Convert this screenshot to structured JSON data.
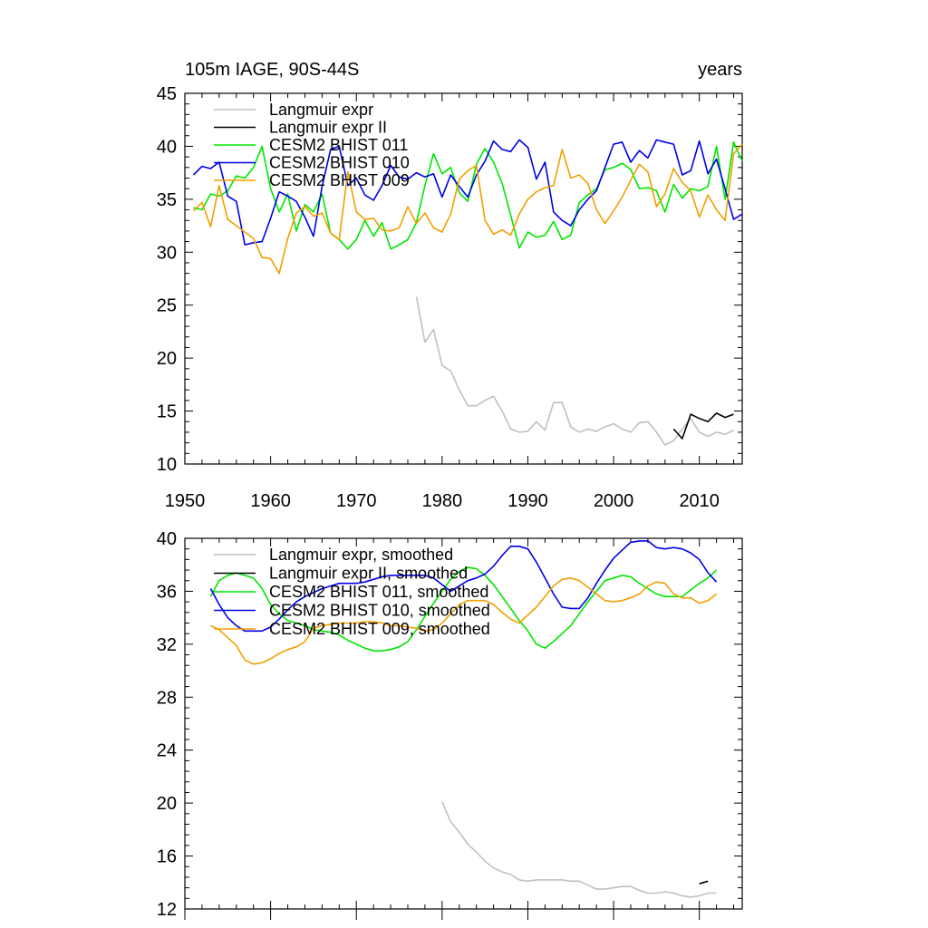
{
  "chart_data": [
    {
      "type": "line",
      "title": "105m IAGE, 90S-44S",
      "units": "years",
      "xlim": [
        1950,
        2015
      ],
      "ylim": [
        10,
        45
      ],
      "x_ticks": [
        1950,
        1960,
        1970,
        1980,
        1990,
        2000,
        2010
      ],
      "y_ticks": [
        10,
        15,
        20,
        25,
        30,
        35,
        40,
        45
      ],
      "legend_position": "top-left",
      "series": [
        {
          "name": "Langmuir expr",
          "color": "#c0c0c0",
          "x": [
            1977,
            1978,
            1979,
            1980,
            1981,
            1982,
            1983,
            1984,
            1985,
            1986,
            1987,
            1988,
            1989,
            1990,
            1991,
            1992,
            1993,
            1994,
            1995,
            1996,
            1997,
            1998,
            1999,
            2000,
            2001,
            2002,
            2003,
            2004,
            2005,
            2006,
            2007,
            2008,
            2009,
            2010,
            2011,
            2012,
            2013,
            2014
          ],
          "y": [
            25.8,
            21.5,
            22.7,
            19.3,
            18.8,
            17.0,
            15.5,
            15.5,
            16.0,
            16.4,
            15.0,
            13.3,
            13.0,
            13.1,
            14.0,
            13.2,
            15.8,
            15.8,
            13.5,
            13.0,
            13.3,
            13.1,
            13.5,
            13.8,
            13.3,
            13.0,
            13.9,
            14.0,
            13.0,
            11.8,
            12.2,
            13.3,
            14.3,
            13.0,
            12.6,
            13.0,
            12.8,
            13.2
          ]
        },
        {
          "name": "Langmuir expr II",
          "color": "#000000",
          "x": [
            2007,
            2008,
            2009,
            2010,
            2011,
            2012,
            2013,
            2014
          ],
          "y": [
            13.3,
            12.4,
            14.7,
            14.3,
            14.0,
            14.8,
            14.4,
            14.7
          ]
        },
        {
          "name": "CESM2 BHIST 011",
          "color": "#00e600",
          "x": [
            1951,
            1952,
            1953,
            1954,
            1955,
            1956,
            1957,
            1958,
            1959,
            1960,
            1961,
            1962,
            1963,
            1964,
            1965,
            1966,
            1967,
            1968,
            1969,
            1970,
            1971,
            1972,
            1973,
            1974,
            1975,
            1976,
            1977,
            1978,
            1979,
            1980,
            1981,
            1982,
            1983,
            1984,
            1985,
            1986,
            1987,
            1988,
            1989,
            1990,
            1991,
            1992,
            1993,
            1994,
            1995,
            1996,
            1997,
            1998,
            1999,
            2000,
            2001,
            2002,
            2003,
            2004,
            2005,
            2006,
            2007,
            2008,
            2009,
            2010,
            2011,
            2012,
            2013,
            2014,
            2015
          ],
          "y": [
            34.2,
            34.0,
            35.5,
            35.3,
            35.8,
            37.2,
            37.0,
            38.0,
            40.0,
            36.0,
            33.8,
            35.5,
            32.0,
            34.5,
            33.8,
            35.5,
            31.8,
            31.2,
            30.3,
            31.2,
            33.0,
            31.5,
            32.8,
            30.3,
            30.7,
            31.2,
            32.8,
            36.3,
            39.3,
            37.4,
            38.0,
            35.6,
            34.8,
            38.3,
            39.8,
            38.5,
            36.5,
            33.5,
            30.4,
            31.9,
            31.4,
            31.6,
            32.9,
            31.2,
            31.6,
            34.7,
            35.4,
            36.0,
            37.8,
            38.0,
            38.4,
            37.8,
            36.0,
            36.1,
            35.8,
            33.8,
            36.4,
            35.1,
            36.0,
            35.8,
            36.2,
            40.0,
            35.0,
            40.4,
            38.6
          ]
        },
        {
          "name": "CESM2 BHIST 010",
          "color": "#0000e6",
          "x": [
            1951,
            1952,
            1953,
            1954,
            1955,
            1956,
            1957,
            1958,
            1959,
            1960,
            1961,
            1962,
            1963,
            1964,
            1965,
            1966,
            1967,
            1968,
            1969,
            1970,
            1971,
            1972,
            1973,
            1974,
            1975,
            1976,
            1977,
            1978,
            1979,
            1980,
            1981,
            1982,
            1983,
            1984,
            1985,
            1986,
            1987,
            1988,
            1989,
            1990,
            1991,
            1992,
            1993,
            1994,
            1995,
            1996,
            1997,
            1998,
            1999,
            2000,
            2001,
            2002,
            2003,
            2004,
            2005,
            2006,
            2007,
            2008,
            2009,
            2010,
            2011,
            2012,
            2013,
            2014,
            2015
          ],
          "y": [
            37.3,
            38.1,
            37.9,
            38.5,
            35.3,
            34.8,
            30.7,
            30.9,
            31.0,
            33.2,
            35.7,
            35.3,
            34.8,
            33.3,
            31.5,
            36.2,
            39.7,
            40.0,
            36.3,
            37.0,
            35.4,
            34.9,
            36.3,
            38.2,
            37.1,
            36.9,
            37.5,
            37.1,
            37.4,
            35.2,
            37.3,
            36.2,
            35.2,
            37.3,
            38.6,
            40.5,
            39.7,
            39.5,
            40.6,
            39.9,
            36.9,
            38.5,
            33.8,
            33.0,
            32.5,
            34.0,
            35.0,
            35.8,
            38.0,
            40.2,
            40.4,
            38.5,
            39.6,
            38.9,
            40.6,
            40.4,
            40.2,
            37.3,
            37.7,
            40.5,
            37.4,
            38.8,
            36.0,
            33.1,
            33.6
          ]
        },
        {
          "name": "CESM2 BHIST 009",
          "color": "#f0a000",
          "x": [
            1951,
            1952,
            1953,
            1954,
            1955,
            1956,
            1957,
            1958,
            1959,
            1960,
            1961,
            1962,
            1963,
            1964,
            1965,
            1966,
            1967,
            1968,
            1969,
            1970,
            1971,
            1972,
            1973,
            1974,
            1975,
            1976,
            1977,
            1978,
            1979,
            1980,
            1981,
            1982,
            1983,
            1984,
            1985,
            1986,
            1987,
            1988,
            1989,
            1990,
            1991,
            1992,
            1993,
            1994,
            1995,
            1996,
            1997,
            1998,
            1999,
            2000,
            2001,
            2002,
            2003,
            2004,
            2005,
            2006,
            2007,
            2008,
            2009,
            2010,
            2011,
            2012,
            2013,
            2014,
            2015
          ],
          "y": [
            33.9,
            34.7,
            32.4,
            36.3,
            33.1,
            32.5,
            31.9,
            31.3,
            29.5,
            29.4,
            28.0,
            31.3,
            33.7,
            34.3,
            33.4,
            33.7,
            31.8,
            31.2,
            37.6,
            33.8,
            33.1,
            33.2,
            32.1,
            32.0,
            32.3,
            34.3,
            32.7,
            33.7,
            32.3,
            31.9,
            33.6,
            36.9,
            37.7,
            38.2,
            33.0,
            31.7,
            32.1,
            31.6,
            33.6,
            35.0,
            35.7,
            36.1,
            36.3,
            39.7,
            37.0,
            37.3,
            36.5,
            34.0,
            32.7,
            33.9,
            35.2,
            36.8,
            38.3,
            37.6,
            34.3,
            35.5,
            37.9,
            36.6,
            35.8,
            33.3,
            35.4,
            34.0,
            33.0,
            39.3,
            40.2
          ]
        }
      ]
    },
    {
      "type": "line",
      "xlim": [
        1950,
        2015
      ],
      "ylim": [
        12,
        40
      ],
      "y_ticks": [
        12,
        16,
        20,
        24,
        28,
        32,
        36,
        40
      ],
      "legend_position": "top-left",
      "series": [
        {
          "name": "Langmuir expr, smoothed",
          "color": "#c0c0c0",
          "x": [
            1980,
            1981,
            1982,
            1983,
            1984,
            1985,
            1986,
            1987,
            1988,
            1989,
            1990,
            1991,
            1992,
            1993,
            1994,
            1995,
            1996,
            1997,
            1998,
            1999,
            2000,
            2001,
            2002,
            2003,
            2004,
            2005,
            2006,
            2007,
            2008,
            2009,
            2010,
            2011,
            2012
          ],
          "y": [
            20.1,
            18.6,
            17.8,
            16.9,
            16.3,
            15.6,
            15.1,
            14.8,
            14.6,
            14.2,
            14.1,
            14.2,
            14.2,
            14.2,
            14.2,
            14.1,
            14.1,
            13.8,
            13.5,
            13.5,
            13.6,
            13.7,
            13.7,
            13.4,
            13.2,
            13.2,
            13.3,
            13.2,
            13.0,
            12.9,
            13.0,
            13.2,
            13.2
          ]
        },
        {
          "name": "Langmuir expr II, smoothed",
          "color": "#000000",
          "x": [
            2010,
            2011
          ],
          "y": [
            13.9,
            14.1
          ]
        },
        {
          "name": "CESM2 BHIST 011, smoothed",
          "color": "#00e600",
          "x": [
            1953,
            1954,
            1955,
            1956,
            1957,
            1958,
            1959,
            1960,
            1961,
            1962,
            1963,
            1964,
            1965,
            1966,
            1967,
            1968,
            1969,
            1970,
            1971,
            1972,
            1973,
            1974,
            1975,
            1976,
            1977,
            1978,
            1979,
            1980,
            1981,
            1982,
            1983,
            1984,
            1985,
            1986,
            1987,
            1988,
            1989,
            1990,
            1991,
            1992,
            1993,
            1994,
            1995,
            1996,
            1997,
            1998,
            1999,
            2000,
            2001,
            2002,
            2003,
            2004,
            2005,
            2006,
            2007,
            2008,
            2009,
            2010,
            2011,
            2012
          ],
          "y": [
            35.6,
            36.8,
            37.2,
            37.4,
            37.2,
            37.0,
            36.2,
            35.0,
            34.3,
            33.8,
            33.6,
            33.4,
            33.1,
            33.0,
            32.9,
            32.7,
            32.3,
            32.0,
            31.7,
            31.5,
            31.5,
            31.6,
            31.8,
            32.2,
            33.1,
            34.1,
            35.1,
            36.0,
            36.9,
            37.5,
            37.8,
            37.7,
            37.2,
            36.5,
            35.6,
            34.7,
            33.8,
            33.0,
            32.0,
            31.7,
            32.2,
            32.8,
            33.4,
            34.3,
            35.2,
            36.0,
            36.8,
            37.0,
            37.2,
            37.1,
            36.6,
            36.2,
            35.8,
            35.6,
            35.6,
            35.6,
            36.1,
            36.6,
            37.0,
            37.6
          ]
        },
        {
          "name": "CESM2 BHIST 010, smoothed",
          "color": "#0000e6",
          "x": [
            1953,
            1954,
            1955,
            1956,
            1957,
            1958,
            1959,
            1960,
            1961,
            1962,
            1963,
            1964,
            1965,
            1966,
            1967,
            1968,
            1969,
            1970,
            1971,
            1972,
            1973,
            1974,
            1975,
            1976,
            1977,
            1978,
            1979,
            1980,
            1981,
            1982,
            1983,
            1984,
            1985,
            1986,
            1987,
            1988,
            1989,
            1990,
            1991,
            1992,
            1993,
            1994,
            1995,
            1996,
            1997,
            1998,
            1999,
            2000,
            2001,
            2002,
            2003,
            2004,
            2005,
            2006,
            2007,
            2008,
            2009,
            2010,
            2011,
            2012
          ],
          "y": [
            36.2,
            35.0,
            34.0,
            33.4,
            33.0,
            33.0,
            33.0,
            33.3,
            33.9,
            34.6,
            35.2,
            35.6,
            35.9,
            36.2,
            36.4,
            36.6,
            36.6,
            36.6,
            36.7,
            36.9,
            37.1,
            37.2,
            37.2,
            37.2,
            37.2,
            37.2,
            37.0,
            36.5,
            36.0,
            36.4,
            36.8,
            37.0,
            37.3,
            37.9,
            38.7,
            39.4,
            39.4,
            39.2,
            38.2,
            37.0,
            35.8,
            34.8,
            34.7,
            34.7,
            35.5,
            36.6,
            37.6,
            38.5,
            39.1,
            39.7,
            39.8,
            39.8,
            39.3,
            39.2,
            39.3,
            39.2,
            38.9,
            38.4,
            37.4,
            36.7
          ]
        },
        {
          "name": "CESM2 BHIST 009, smoothed",
          "color": "#f0a000",
          "x": [
            1953,
            1954,
            1955,
            1956,
            1957,
            1958,
            1959,
            1960,
            1961,
            1962,
            1963,
            1964,
            1965,
            1966,
            1967,
            1968,
            1969,
            1970,
            1971,
            1972,
            1973,
            1974,
            1975,
            1976,
            1977,
            1978,
            1979,
            1980,
            1981,
            1982,
            1983,
            1984,
            1985,
            1986,
            1987,
            1988,
            1989,
            1990,
            1991,
            1992,
            1993,
            1994,
            1995,
            1996,
            1997,
            1998,
            1999,
            2000,
            2001,
            2002,
            2003,
            2004,
            2005,
            2006,
            2007,
            2008,
            2009,
            2010,
            2011,
            2012
          ],
          "y": [
            33.4,
            33.1,
            32.5,
            31.9,
            30.8,
            30.5,
            30.6,
            30.9,
            31.3,
            31.6,
            31.8,
            32.2,
            33.2,
            33.4,
            33.5,
            33.6,
            33.6,
            33.6,
            33.7,
            33.7,
            33.6,
            33.4,
            33.4,
            33.3,
            33.2,
            33.0,
            33.1,
            33.6,
            34.3,
            35.0,
            35.3,
            35.3,
            35.3,
            35.0,
            34.4,
            33.9,
            33.6,
            34.2,
            34.8,
            35.6,
            36.4,
            36.9,
            37.0,
            36.8,
            36.3,
            35.8,
            35.3,
            35.2,
            35.3,
            35.5,
            35.8,
            36.4,
            36.7,
            36.6,
            35.8,
            35.5,
            35.5,
            35.1,
            35.3,
            35.8
          ]
        }
      ]
    }
  ]
}
